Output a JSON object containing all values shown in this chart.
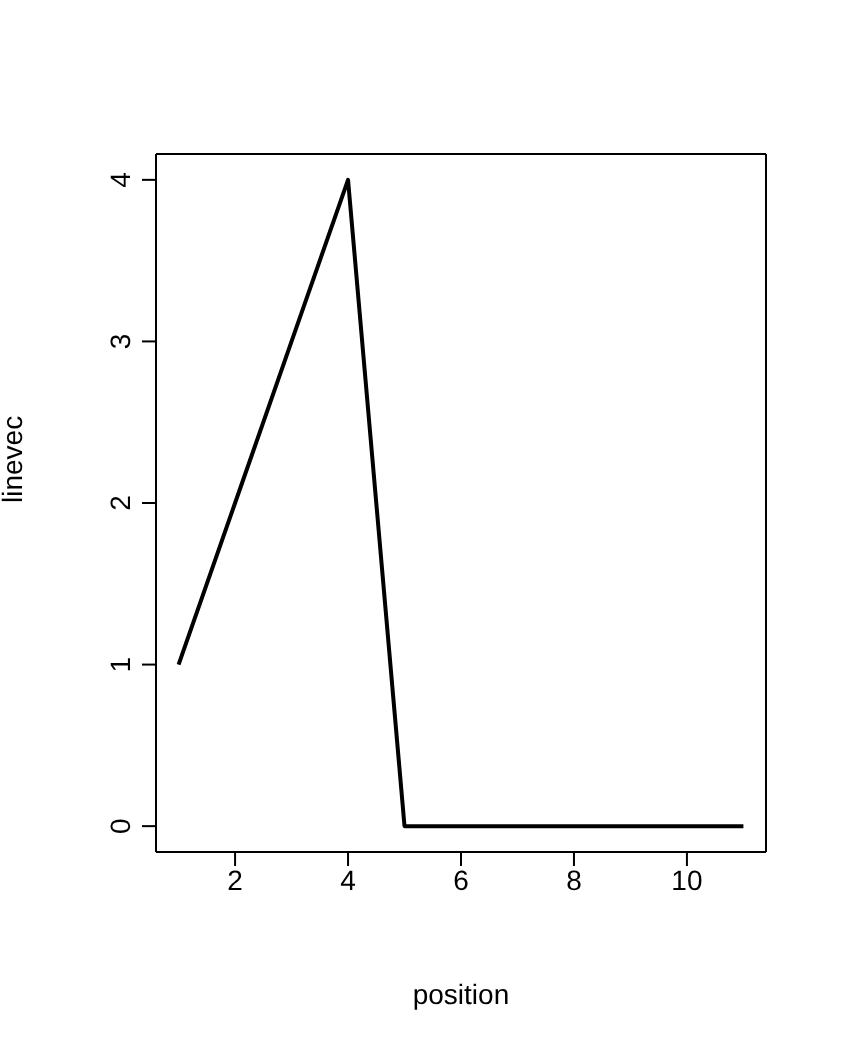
{
  "chart_data": {
    "type": "line",
    "xlabel": "position",
    "ylabel": "linevec",
    "x": [
      1,
      2,
      3,
      4,
      5,
      6,
      7,
      8,
      9,
      10,
      11
    ],
    "series": [
      {
        "color": "#000000",
        "values": [
          1,
          2,
          3,
          4,
          0,
          0,
          0,
          0,
          0,
          0,
          0
        ]
      }
    ],
    "xlim": [
      0.6,
      11.4
    ],
    "ylim": [
      -0.16,
      4.16
    ],
    "xticks": [
      2,
      4,
      6,
      8,
      10
    ],
    "yticks": [
      0,
      1,
      2,
      3,
      4
    ],
    "grid": false,
    "legend": false,
    "marker": "none",
    "line_style": "solid"
  }
}
